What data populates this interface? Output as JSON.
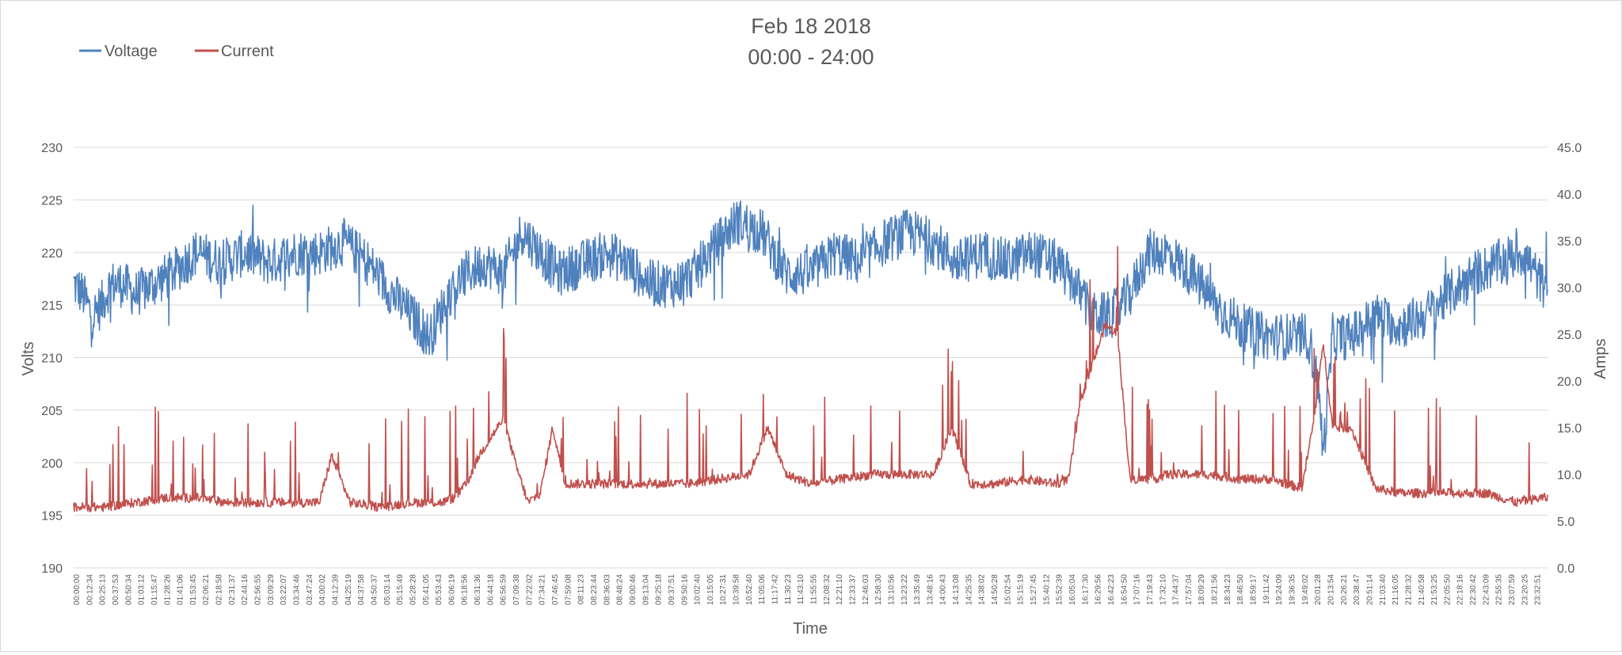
{
  "chart_data": {
    "type": "line",
    "title": "Feb 18 2018",
    "subtitle": "00:00 - 24:00",
    "xlabel": "Time",
    "ylabel": "Volts",
    "y2label": "Amps",
    "legend_position": "top-left",
    "grid": true,
    "ylim": [
      190,
      230
    ],
    "y2lim": [
      0,
      45
    ],
    "y_ticks": [
      "190",
      "195",
      "200",
      "205",
      "210",
      "215",
      "220",
      "225",
      "230"
    ],
    "y2_ticks": [
      "0.0",
      "5.0",
      "10.0",
      "15.0",
      "20.0",
      "25.0",
      "30.0",
      "35.0",
      "40.0",
      "45.0"
    ],
    "x_ticks": [
      "00:00:00",
      "00:12:34",
      "00:25:13",
      "00:37:53",
      "00:50:34",
      "01:03:12",
      "01:15:47",
      "01:28:26",
      "01:41:06",
      "01:53:45",
      "02:06:21",
      "02:18:58",
      "02:31:37",
      "02:44:16",
      "02:56:55",
      "03:09:29",
      "03:22:07",
      "03:34:46",
      "03:47:24",
      "04:00:02",
      "04:12:39",
      "04:25:19",
      "04:37:58",
      "04:50:37",
      "05:03:14",
      "05:15:49",
      "05:28:28",
      "05:41:05",
      "05:53:43",
      "06:06:19",
      "06:18:56",
      "06:31:36",
      "06:44:18",
      "06:56:59",
      "07:09:38",
      "07:22:02",
      "07:34:21",
      "07:46:45",
      "07:59:08",
      "08:11:23",
      "08:23:44",
      "08:36:03",
      "08:48:24",
      "09:00:46",
      "09:13:04",
      "09:25:18",
      "09:37:51",
      "09:50:16",
      "10:02:40",
      "10:15:05",
      "10:27:31",
      "10:39:58",
      "10:52:40",
      "11:05:06",
      "11:17:42",
      "11:30:23",
      "11:43:10",
      "11:55:55",
      "12:08:32",
      "12:21:10",
      "12:33:37",
      "12:46:03",
      "12:58:30",
      "13:10:56",
      "13:23:22",
      "13:35:49",
      "13:48:16",
      "14:00:43",
      "14:13:08",
      "14:25:35",
      "14:38:02",
      "14:50:28",
      "15:02:54",
      "15:15:19",
      "15:27:45",
      "15:40:12",
      "15:52:39",
      "16:05:04",
      "16:17:30",
      "16:29:56",
      "16:42:23",
      "16:54:50",
      "17:07:16",
      "17:19:43",
      "17:32:10",
      "17:44:37",
      "17:57:04",
      "18:09:29",
      "18:21:56",
      "18:34:23",
      "18:46:50",
      "18:59:17",
      "19:11:42",
      "19:24:09",
      "19:36:35",
      "19:49:02",
      "20:01:28",
      "20:13:54",
      "20:26:21",
      "20:38:47",
      "20:51:14",
      "21:03:40",
      "21:16:05",
      "21:28:32",
      "21:40:58",
      "21:53:25",
      "22:05:50",
      "22:18:16",
      "22:30:42",
      "22:43:09",
      "22:55:35",
      "23:07:59",
      "23:20:25",
      "23:32:51"
    ],
    "series": [
      {
        "name": "Voltage",
        "axis": "left",
        "color": "#4F81BD",
        "x_hours": [
          0,
          0.15,
          0.3,
          0.45,
          0.6,
          0.8,
          1,
          1.3,
          1.6,
          2,
          2.4,
          2.8,
          3.2,
          3.6,
          4.0,
          4.4,
          4.8,
          5.2,
          5.5,
          5.8,
          6.1,
          6.4,
          6.7,
          7.0,
          7.3,
          7.6,
          7.9,
          8.3,
          8.7,
          9.0,
          9.4,
          9.8,
          10.1,
          10.5,
          10.8,
          11.2,
          11.6,
          12.0,
          12.4,
          12.8,
          13.2,
          13.6,
          14.0,
          14.4,
          14.8,
          15.2,
          15.6,
          16.0,
          16.3,
          16.6,
          16.9,
          17.2,
          17.5,
          17.8,
          18.2,
          18.6,
          19.0,
          19.4,
          19.8,
          20.1,
          20.25,
          20.35,
          20.5,
          20.8,
          21.2,
          21.6,
          22.0,
          22.4,
          22.8,
          23.2,
          23.6,
          23.9
        ],
        "values": [
          217,
          216,
          214,
          215,
          217,
          217,
          216,
          217,
          218,
          220,
          219,
          220,
          219,
          220,
          220,
          221,
          219,
          216,
          214,
          212,
          216,
          218,
          219,
          218,
          222,
          220,
          218,
          219,
          220,
          219,
          217,
          217,
          218,
          221,
          223,
          222,
          218,
          218,
          220,
          219,
          221,
          222,
          221,
          219,
          220,
          219,
          220,
          219,
          217,
          214,
          214,
          216,
          220,
          220,
          218,
          215,
          213,
          212,
          212,
          212,
          208,
          201,
          212,
          212,
          214,
          213,
          214,
          216,
          218,
          219,
          220,
          217
        ]
      },
      {
        "name": "Current",
        "axis": "right",
        "color": "#C0504D",
        "x_hours": [
          0,
          0.5,
          1,
          1.5,
          2,
          2.5,
          3,
          3.5,
          4,
          4.2,
          4.5,
          5,
          5.5,
          6,
          6.2,
          6.4,
          6.6,
          6.8,
          7.0,
          7.2,
          7.4,
          7.6,
          7.8,
          8.0,
          8.5,
          9.0,
          9.5,
          10,
          10.5,
          11,
          11.3,
          11.6,
          12,
          12.5,
          13,
          13.5,
          14,
          14.3,
          14.6,
          15,
          15.5,
          16,
          16.2,
          16.4,
          16.6,
          16.8,
          17.0,
          17.2,
          17.4,
          17.6,
          17.8,
          18,
          18.5,
          19,
          19.5,
          20,
          20.2,
          20.35,
          20.5,
          20.8,
          21.2,
          21.6,
          22,
          22.5,
          23,
          23.5,
          23.9
        ],
        "values": [
          6.5,
          6.5,
          7,
          7.5,
          7.5,
          7,
          7,
          7,
          7,
          12,
          7,
          6.5,
          7,
          7,
          7.5,
          9,
          12,
          14,
          16,
          11,
          7,
          8,
          15,
          9,
          9,
          9,
          9,
          9,
          9.5,
          10,
          15,
          10,
          9,
          9.5,
          10,
          10,
          10,
          15,
          9,
          9,
          9.5,
          9,
          9.5,
          18,
          22,
          26,
          25,
          9.5,
          9.5,
          9.5,
          10,
          10,
          10,
          9.5,
          9.5,
          8.5,
          16,
          24,
          15,
          15,
          8.5,
          8,
          8,
          8,
          8,
          7,
          7.5
        ]
      }
    ]
  }
}
